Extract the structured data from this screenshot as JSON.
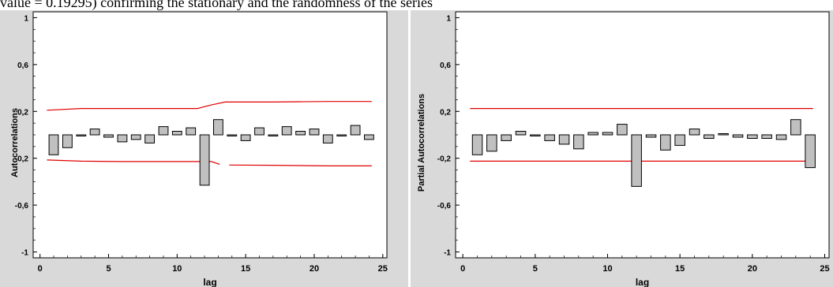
{
  "caption": "value = 0.19295) confirming the stationary and the randomness of the series",
  "colors": {
    "background": "#d9d9d9",
    "plot_area": "#ffffff",
    "bar_fill": "#c0c0c0",
    "bar_stroke": "#000000",
    "confidence_limit": "#e00000"
  },
  "chart_data": [
    {
      "type": "bar",
      "title": "",
      "xlabel": "lag",
      "ylabel": "Autocorrelations",
      "xlim": [
        -0.5,
        25.3
      ],
      "ylim": [
        -1.05,
        1.05
      ],
      "xticks": [
        0,
        5,
        10,
        15,
        20,
        25
      ],
      "yticks": [
        -1,
        -0.6,
        -0.2,
        0.2,
        0.6,
        1
      ],
      "ytick_labels": [
        "-1",
        "-0,6",
        "-0,2",
        "0,2",
        "0,6",
        "1"
      ],
      "grid": false,
      "legend": "none",
      "lags": [
        1,
        2,
        3,
        4,
        5,
        6,
        7,
        8,
        9,
        10,
        11,
        12,
        13,
        14,
        15,
        16,
        17,
        18,
        19,
        20,
        21,
        22,
        23,
        24
      ],
      "values": [
        -0.17,
        -0.11,
        -0.01,
        0.05,
        -0.02,
        -0.06,
        -0.04,
        -0.07,
        0.07,
        0.03,
        0.06,
        -0.43,
        0.13,
        -0.01,
        -0.05,
        0.06,
        -0.01,
        0.07,
        0.03,
        0.05,
        -0.07,
        -0.01,
        0.08,
        -0.04
      ],
      "confidence_upper": [
        [
          0.5,
          0.21
        ],
        [
          3,
          0.225
        ],
        [
          6,
          0.225
        ],
        [
          11.5,
          0.225
        ],
        [
          12.5,
          0.255
        ],
        [
          13.5,
          0.28
        ],
        [
          17,
          0.28
        ],
        [
          21,
          0.285
        ],
        [
          24.2,
          0.285
        ]
      ],
      "confidence_lower": [
        [
          0.5,
          -0.215
        ],
        [
          3,
          -0.225
        ],
        [
          6,
          -0.228
        ],
        [
          11.5,
          -0.228
        ],
        [
          12.5,
          -0.228
        ],
        [
          13.1,
          -0.252
        ]
      ],
      "confidence_lower_2": [
        [
          13.8,
          -0.258
        ],
        [
          17,
          -0.26
        ],
        [
          21,
          -0.265
        ],
        [
          24.2,
          -0.265
        ]
      ]
    },
    {
      "type": "bar",
      "title": "",
      "xlabel": "lag",
      "ylabel": "Partial Autocorrelations",
      "xlim": [
        -0.5,
        25.3
      ],
      "ylim": [
        -1.05,
        1.05
      ],
      "xticks": [
        0,
        5,
        10,
        15,
        20,
        25
      ],
      "yticks": [
        -1,
        -0.6,
        -0.2,
        0.2,
        0.6,
        1
      ],
      "ytick_labels": [
        "-1",
        "-0,6",
        "-0,2",
        "0,2",
        "0,6",
        "1"
      ],
      "grid": false,
      "legend": "none",
      "lags": [
        1,
        2,
        3,
        4,
        5,
        6,
        7,
        8,
        9,
        10,
        11,
        12,
        13,
        14,
        15,
        16,
        17,
        18,
        19,
        20,
        21,
        22,
        23,
        24
      ],
      "values": [
        -0.17,
        -0.14,
        -0.05,
        0.03,
        -0.01,
        -0.05,
        -0.08,
        -0.12,
        0.02,
        0.02,
        0.09,
        -0.44,
        -0.02,
        -0.13,
        -0.09,
        0.05,
        -0.03,
        0.01,
        -0.02,
        -0.03,
        -0.03,
        -0.04,
        0.13,
        -0.28
      ],
      "confidence_upper": [
        [
          0.5,
          0.225
        ],
        [
          24.2,
          0.225
        ]
      ],
      "confidence_lower": [
        [
          0.5,
          -0.225
        ],
        [
          24.2,
          -0.225
        ]
      ]
    }
  ]
}
